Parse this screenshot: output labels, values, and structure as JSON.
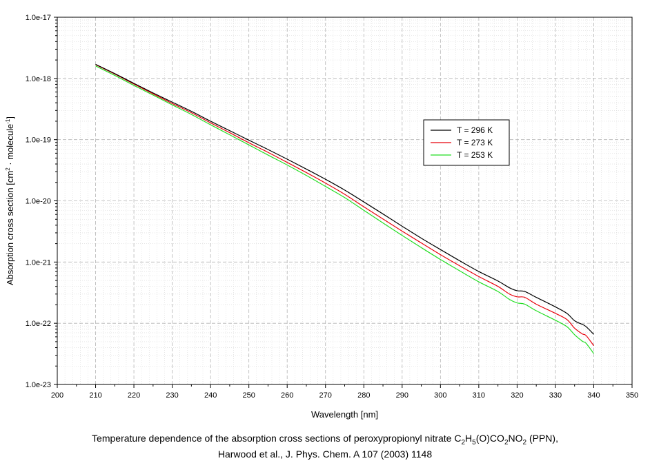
{
  "chart_data": {
    "type": "line",
    "xlabel": "Wavelength [nm]",
    "ylabel": {
      "text": "Absorption cross section [cm",
      "sup1": "2",
      "mid": " · molecule",
      "sup2": "-1",
      "end": "]"
    },
    "xlim": [
      200,
      350
    ],
    "ylim": [
      1e-23,
      1e-17
    ],
    "y_scale": "log",
    "x_ticks": [
      200,
      210,
      220,
      230,
      240,
      250,
      260,
      270,
      280,
      290,
      300,
      310,
      320,
      330,
      340,
      350
    ],
    "y_ticks": [
      {
        "value": 1e-17,
        "label": "1.0e-17"
      },
      {
        "value": 1e-18,
        "label": "1.0e-18"
      },
      {
        "value": 1e-19,
        "label": "1.0e-19"
      },
      {
        "value": 1e-20,
        "label": "1.0e-20"
      },
      {
        "value": 1e-21,
        "label": "1.0e-21"
      },
      {
        "value": 1e-22,
        "label": "1.0e-22"
      },
      {
        "value": 1e-23,
        "label": "1.0e-23"
      }
    ],
    "grid": true,
    "legend_position": "right-upper",
    "series": [
      {
        "name": "T = 296 K",
        "color": "#000000",
        "x": [
          210,
          215,
          220,
          225,
          230,
          235,
          240,
          245,
          250,
          255,
          260,
          265,
          270,
          275,
          280,
          285,
          290,
          295,
          300,
          305,
          310,
          315,
          318,
          320,
          322,
          325,
          330,
          333,
          335,
          337,
          338,
          340
        ],
        "y": [
          1.7e-18,
          1.2e-18,
          8.3e-19,
          5.8e-19,
          4.1e-19,
          2.9e-19,
          2e-19,
          1.4e-19,
          9.8e-20,
          6.9e-20,
          4.8e-20,
          3.3e-20,
          2.25e-20,
          1.5e-20,
          9.6e-21,
          6.1e-21,
          3.85e-21,
          2.45e-21,
          1.6e-21,
          1.05e-21,
          7e-22,
          4.9e-22,
          3.8e-22,
          3.4e-22,
          3.3e-22,
          2.65e-22,
          1.85e-22,
          1.45e-22,
          1.1e-22,
          9.6e-23,
          8.8e-23,
          6.6e-23
        ]
      },
      {
        "name": "T = 273 K",
        "color": "#e8000b",
        "x": [
          210,
          215,
          220,
          225,
          230,
          235,
          240,
          245,
          250,
          255,
          260,
          265,
          270,
          275,
          280,
          285,
          290,
          295,
          300,
          305,
          310,
          315,
          318,
          320,
          322,
          325,
          330,
          333,
          335,
          337,
          338,
          340
        ],
        "y": [
          1.68e-18,
          1.18e-18,
          8.1e-19,
          5.6e-19,
          3.9e-19,
          2.75e-19,
          1.88e-19,
          1.3e-19,
          8.9e-20,
          6.2e-20,
          4.25e-20,
          2.9e-20,
          1.95e-20,
          1.28e-20,
          8e-21,
          5.05e-21,
          3.2e-21,
          2.05e-21,
          1.32e-21,
          8.7e-22,
          5.8e-22,
          4e-22,
          3e-22,
          2.7e-22,
          2.65e-22,
          2.05e-22,
          1.45e-22,
          1.15e-22,
          8.3e-23,
          6.7e-23,
          6.3e-23,
          4.3e-23
        ]
      },
      {
        "name": "T = 253 K",
        "color": "#22dd22",
        "x": [
          210,
          215,
          220,
          225,
          230,
          235,
          240,
          245,
          250,
          255,
          260,
          265,
          270,
          275,
          280,
          285,
          290,
          295,
          300,
          305,
          310,
          315,
          318,
          320,
          322,
          325,
          330,
          333,
          335,
          337,
          338,
          340
        ],
        "y": [
          1.6e-18,
          1.12e-18,
          7.7e-19,
          5.35e-19,
          3.7e-19,
          2.58e-19,
          1.75e-19,
          1.2e-19,
          8.2e-20,
          5.6e-20,
          3.85e-20,
          2.6e-20,
          1.72e-20,
          1.13e-20,
          7e-21,
          4.35e-21,
          2.72e-21,
          1.72e-21,
          1.1e-21,
          7.2e-22,
          4.75e-22,
          3.3e-22,
          2.45e-22,
          2.15e-22,
          2.05e-22,
          1.6e-22,
          1.12e-22,
          8.8e-23,
          6.5e-23,
          5.1e-23,
          4.7e-23,
          3.2e-23
        ]
      }
    ]
  },
  "caption": {
    "line1": {
      "prefix": "Temperature dependence of the absorption cross sections of peroxypropionyl nitrate C",
      "s1": "2",
      "t1": "H",
      "s2": "5",
      "t2": "(O)CO",
      "s3": "2",
      "t3": "NO",
      "s4": "2",
      "suffix": " (PPN),"
    },
    "line2": "Harwood et al., J. Phys. Chem. A 107 (2003) 1148"
  }
}
